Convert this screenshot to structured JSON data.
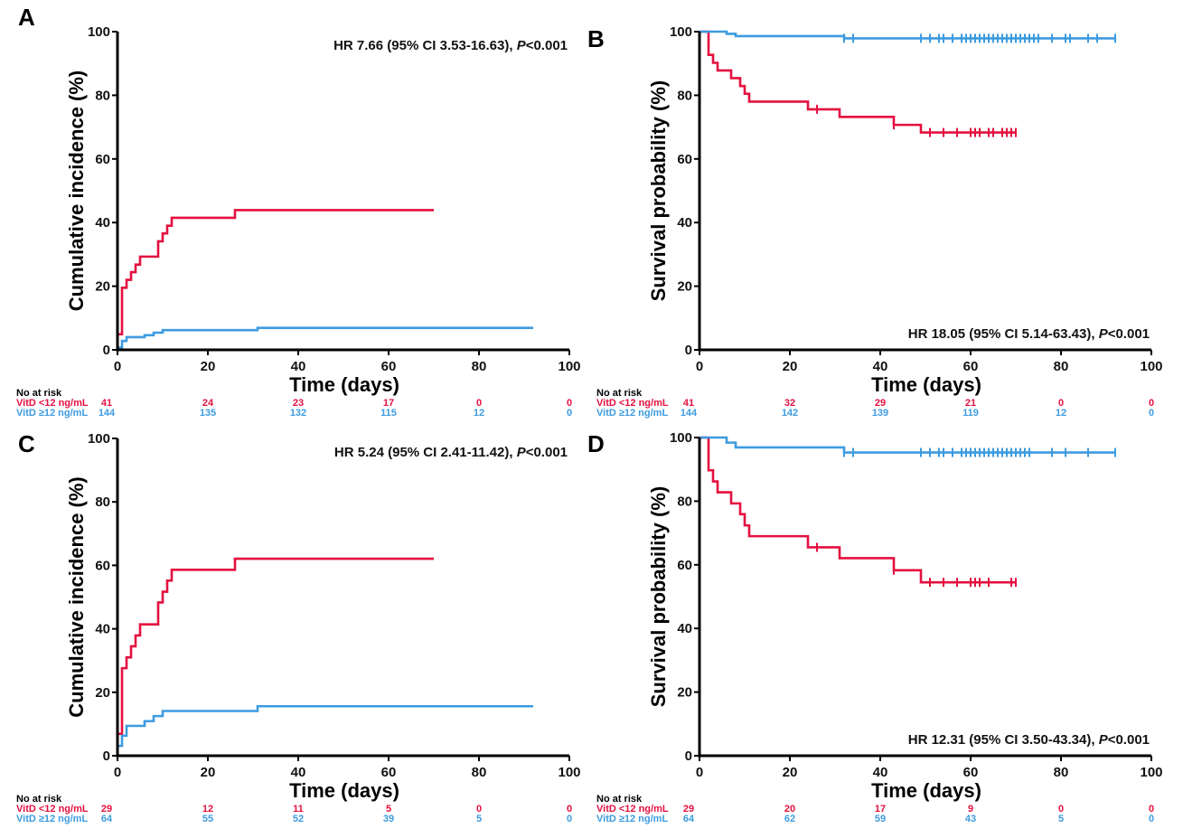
{
  "figure": {
    "colors": {
      "low": "#E4103F",
      "high": "#3D9BE0",
      "axis": "#000000"
    }
  },
  "chart_data": [
    {
      "panel": "A",
      "type": "line",
      "subtype": "step",
      "direction": "up",
      "xlabel": "Time (days)",
      "ylabel": "Cumulative incidence (%)",
      "xlim": [
        0,
        100
      ],
      "ylim": [
        0,
        100
      ],
      "xticks": [
        0,
        20,
        40,
        60,
        80,
        100
      ],
      "yticks": [
        0,
        20,
        40,
        60,
        80,
        100
      ],
      "annotation": {
        "text": "HR 7.66 (95% CI 3.53-16.63), ",
        "p_label": "P",
        "p_value": "<0.001",
        "position": "top-right"
      },
      "series": [
        {
          "name": "VitD <12 ng/mL",
          "color_key": "low",
          "steps": [
            [
              0,
              4.9
            ],
            [
              1,
              19.5
            ],
            [
              2,
              22.0
            ],
            [
              3,
              24.4
            ],
            [
              4,
              26.8
            ],
            [
              5,
              29.3
            ],
            [
              9,
              34.1
            ],
            [
              10,
              36.6
            ],
            [
              11,
              39.0
            ],
            [
              12,
              41.5
            ],
            [
              26,
              43.9
            ]
          ],
          "end": 70,
          "censored": []
        },
        {
          "name": "VitD ≥12 ng/mL",
          "color_key": "high",
          "steps": [
            [
              0,
              0.7
            ],
            [
              1,
              2.8
            ],
            [
              2,
              4.0
            ],
            [
              6,
              4.6
            ],
            [
              8,
              5.4
            ],
            [
              10,
              6.2
            ],
            [
              31,
              6.9
            ]
          ],
          "end": 92,
          "censored": []
        }
      ],
      "risk_table": {
        "title": "No at risk",
        "rows": [
          {
            "label": "VitD <12 ng/mL",
            "color_key": "low",
            "values": [
              "41",
              "24",
              "23",
              "17",
              "0",
              "0"
            ]
          },
          {
            "label": "VitD ≥12 ng/mL",
            "color_key": "high",
            "values": [
              "144",
              "135",
              "132",
              "115",
              "12",
              "0"
            ]
          }
        ]
      }
    },
    {
      "panel": "B",
      "type": "line",
      "subtype": "step",
      "direction": "down",
      "xlabel": "Time (days)",
      "ylabel": "Survival probability (%)",
      "xlim": [
        0,
        100
      ],
      "ylim": [
        0,
        100
      ],
      "xticks": [
        0,
        20,
        40,
        60,
        80,
        100
      ],
      "yticks": [
        0,
        20,
        40,
        60,
        80,
        100
      ],
      "annotation": {
        "text": "HR 18.05 (95% CI 5.14-63.43), ",
        "p_label": "P",
        "p_value": "<0.001",
        "position": "bottom-right"
      },
      "series": [
        {
          "name": "VitD <12 ng/mL",
          "color_key": "low",
          "steps": [
            [
              0,
              100
            ],
            [
              2,
              92.7
            ],
            [
              3,
              90.2
            ],
            [
              4,
              87.8
            ],
            [
              7,
              85.4
            ],
            [
              9,
              82.9
            ],
            [
              10,
              80.5
            ],
            [
              11,
              78.0
            ],
            [
              24,
              75.6
            ],
            [
              31,
              73.2
            ],
            [
              43,
              70.7
            ],
            [
              49,
              68.3
            ]
          ],
          "end": 70,
          "censored": [
            26,
            43,
            51,
            54,
            57,
            60,
            61,
            62,
            64,
            65,
            67,
            68,
            69,
            70
          ]
        },
        {
          "name": "VitD ≥12 ng/mL",
          "color_key": "high",
          "steps": [
            [
              0,
              100
            ],
            [
              6,
              99.3
            ],
            [
              8,
              98.6
            ],
            [
              32,
              97.9
            ]
          ],
          "end": 92,
          "censored": [
            32,
            34,
            49,
            51,
            53,
            54,
            56,
            58,
            59,
            60,
            61,
            62,
            63,
            64,
            65,
            66,
            67,
            68,
            69,
            70,
            71,
            72,
            73,
            74,
            75,
            78,
            81,
            82,
            86,
            88,
            92
          ]
        }
      ],
      "risk_table": {
        "title": "No at risk",
        "rows": [
          {
            "label": "VitD <12 ng/mL",
            "color_key": "low",
            "values": [
              "41",
              "32",
              "29",
              "21",
              "0",
              "0"
            ]
          },
          {
            "label": "VitD ≥12 ng/mL",
            "color_key": "high",
            "values": [
              "144",
              "142",
              "139",
              "119",
              "12",
              "0"
            ]
          }
        ]
      }
    },
    {
      "panel": "C",
      "type": "line",
      "subtype": "step",
      "direction": "up",
      "xlabel": "Time (days)",
      "ylabel": "Cumulative incidence (%)",
      "xlim": [
        0,
        100
      ],
      "ylim": [
        0,
        100
      ],
      "xticks": [
        0,
        20,
        40,
        60,
        80,
        100
      ],
      "yticks": [
        0,
        20,
        40,
        60,
        80,
        100
      ],
      "annotation": {
        "text": "HR 5.24 (95% CI 2.41-11.42), ",
        "p_label": "P",
        "p_value": "<0.001",
        "position": "top-right"
      },
      "series": [
        {
          "name": "VitD <12 ng/mL",
          "color_key": "low",
          "steps": [
            [
              0,
              6.9
            ],
            [
              1,
              27.6
            ],
            [
              2,
              31.0
            ],
            [
              3,
              34.5
            ],
            [
              4,
              37.9
            ],
            [
              5,
              41.4
            ],
            [
              9,
              48.3
            ],
            [
              10,
              51.7
            ],
            [
              11,
              55.2
            ],
            [
              12,
              58.6
            ],
            [
              26,
              62.1
            ]
          ],
          "end": 70,
          "censored": []
        },
        {
          "name": "VitD ≥12 ng/mL",
          "color_key": "high",
          "steps": [
            [
              0,
              3.1
            ],
            [
              1,
              6.3
            ],
            [
              2,
              9.4
            ],
            [
              6,
              10.9
            ],
            [
              8,
              12.5
            ],
            [
              10,
              14.1
            ],
            [
              31,
              15.6
            ]
          ],
          "end": 92,
          "censored": []
        }
      ],
      "risk_table": {
        "title": "No at risk",
        "rows": [
          {
            "label": "VitD <12 ng/mL",
            "color_key": "low",
            "values": [
              "29",
              "12",
              "11",
              "5",
              "0",
              "0"
            ]
          },
          {
            "label": "VitD ≥12 ng/mL",
            "color_key": "high",
            "values": [
              "64",
              "55",
              "52",
              "39",
              "5",
              "0"
            ]
          }
        ]
      }
    },
    {
      "panel": "D",
      "type": "line",
      "subtype": "step",
      "direction": "down",
      "xlabel": "Time (days)",
      "ylabel": "Survival probability (%)",
      "xlim": [
        0,
        100
      ],
      "ylim": [
        0,
        100
      ],
      "xticks": [
        0,
        20,
        40,
        60,
        80,
        100
      ],
      "yticks": [
        0,
        20,
        40,
        60,
        80,
        100
      ],
      "annotation": {
        "text": "HR 12.31 (95% CI 3.50-43.34), ",
        "p_label": "P",
        "p_value": "<0.001",
        "position": "bottom-right"
      },
      "series": [
        {
          "name": "VitD <12 ng/mL",
          "color_key": "low",
          "steps": [
            [
              0,
              100
            ],
            [
              2,
              89.7
            ],
            [
              3,
              86.2
            ],
            [
              4,
              82.8
            ],
            [
              7,
              79.3
            ],
            [
              9,
              75.9
            ],
            [
              10,
              72.4
            ],
            [
              11,
              69.0
            ],
            [
              24,
              65.5
            ],
            [
              31,
              62.1
            ],
            [
              43,
              58.3
            ],
            [
              49,
              54.5
            ]
          ],
          "end": 70,
          "censored": [
            26,
            43,
            51,
            54,
            57,
            60,
            61,
            62,
            64,
            69,
            70
          ]
        },
        {
          "name": "VitD ≥12 ng/mL",
          "color_key": "high",
          "steps": [
            [
              0,
              100
            ],
            [
              6,
              98.4
            ],
            [
              8,
              96.9
            ],
            [
              32,
              95.3
            ]
          ],
          "end": 92,
          "censored": [
            32,
            34,
            49,
            51,
            53,
            54,
            56,
            58,
            59,
            60,
            61,
            62,
            63,
            64,
            65,
            66,
            67,
            68,
            69,
            70,
            71,
            72,
            73,
            78,
            81,
            86,
            92
          ]
        }
      ],
      "risk_table": {
        "title": "No at risk",
        "rows": [
          {
            "label": "VitD <12 ng/mL",
            "color_key": "low",
            "values": [
              "29",
              "20",
              "17",
              "9",
              "0",
              "0"
            ]
          },
          {
            "label": "VitD ≥12 ng/mL",
            "color_key": "high",
            "values": [
              "64",
              "62",
              "59",
              "43",
              "5",
              "0"
            ]
          }
        ]
      }
    }
  ]
}
